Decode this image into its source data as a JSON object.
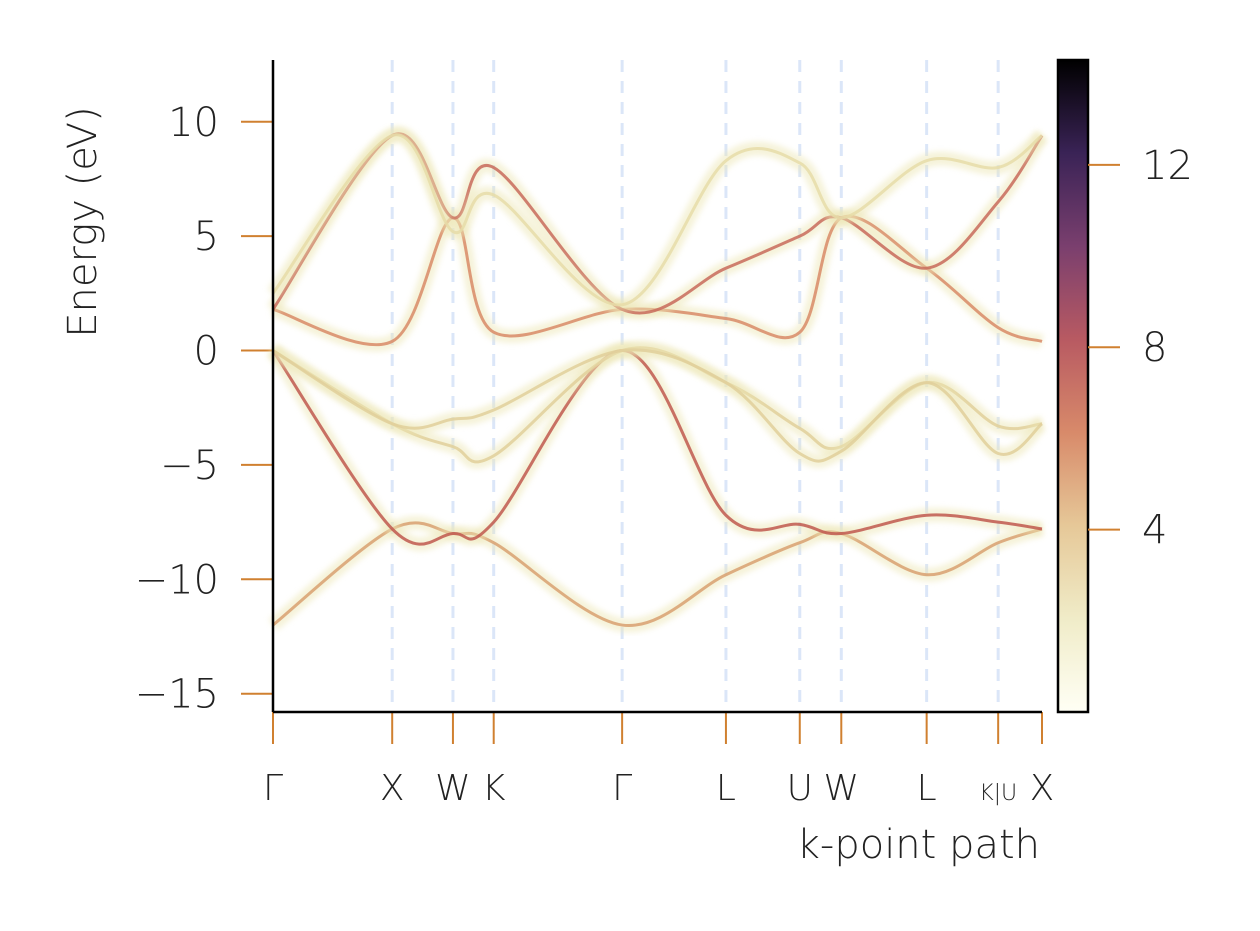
{
  "chart_data": {
    "type": "line",
    "ylabel": "Energy (eV)",
    "xlabel": "k-point path",
    "x": [
      0,
      0.155,
      0.234,
      0.287,
      0.454,
      0.589,
      0.685,
      0.739,
      0.85,
      0.943,
      1
    ],
    "xlim": [
      0,
      1
    ],
    "xticks": [
      {
        "value": 0,
        "label": "Γ"
      },
      {
        "value": 0.155,
        "label": "X"
      },
      {
        "value": 0.234,
        "label": "W"
      },
      {
        "value": 0.287,
        "label": "K"
      },
      {
        "value": 0.454,
        "label": "Γ"
      },
      {
        "value": 0.589,
        "label": "L"
      },
      {
        "value": 0.685,
        "label": "U"
      },
      {
        "value": 0.739,
        "label": "W"
      },
      {
        "value": 0.85,
        "label": "L"
      },
      {
        "value": 0.943,
        "label": "K|U"
      },
      {
        "value": 1,
        "label": "X"
      }
    ],
    "ylim": [
      -15.8,
      12.7
    ],
    "yticks": [
      {
        "value": -15,
        "label": "−15"
      },
      {
        "value": -10,
        "label": "−10"
      },
      {
        "value": -5,
        "label": "−5"
      },
      0,
      5,
      10
    ],
    "grid": true,
    "tick_color": "#d08030",
    "grid_color": "#dbe6f8",
    "series": [
      {
        "color": "#d8a070",
        "values": [
          -12,
          -7.8,
          -8.0,
          -8.4,
          -12,
          -9.8,
          -8.4,
          -8.0,
          -9.8,
          -8.4,
          -7.8
        ]
      },
      {
        "color": "#c0584e",
        "values": [
          0,
          -7.8,
          -8.0,
          -7.5,
          0,
          -7.2,
          -7.6,
          -8.0,
          -7.2,
          -7.5,
          -7.8
        ]
      },
      {
        "color": "#e0cf9a",
        "values": [
          0,
          -3.2,
          -4.2,
          -4.6,
          0,
          -1.4,
          -3.4,
          -4.2,
          -1.4,
          -3.3,
          -3.2
        ]
      },
      {
        "color": "#e0cf9a",
        "values": [
          0,
          -3.2,
          -3.0,
          -2.6,
          0,
          -1.4,
          -4.5,
          -4.4,
          -1.4,
          -4.5,
          -3.2
        ]
      },
      {
        "color": "#d88a66",
        "values": [
          1.8,
          0.4,
          5.8,
          0.8,
          1.8,
          1.4,
          0.8,
          5.8,
          3.6,
          1.0,
          0.4
        ]
      },
      {
        "color": "#c86a5a",
        "values": [
          1.8,
          9.4,
          5.8,
          8.0,
          1.8,
          3.6,
          5.0,
          5.8,
          3.6,
          6.5,
          9.4
        ]
      },
      {
        "color": "#e6dca8",
        "values": [
          2.5,
          9.4,
          5.2,
          6.8,
          2.0,
          8.3,
          8.2,
          5.8,
          8.3,
          8.0,
          9.4
        ]
      }
    ],
    "colorbar": {
      "lim": [
        0,
        14.3
      ],
      "ticks": [
        4,
        8,
        12
      ],
      "colors": [
        "#fffff5",
        "#f0ecc8",
        "#e6c898",
        "#d88a6a",
        "#b85a62",
        "#7a3f6e",
        "#3a2356",
        "#000000"
      ]
    }
  }
}
